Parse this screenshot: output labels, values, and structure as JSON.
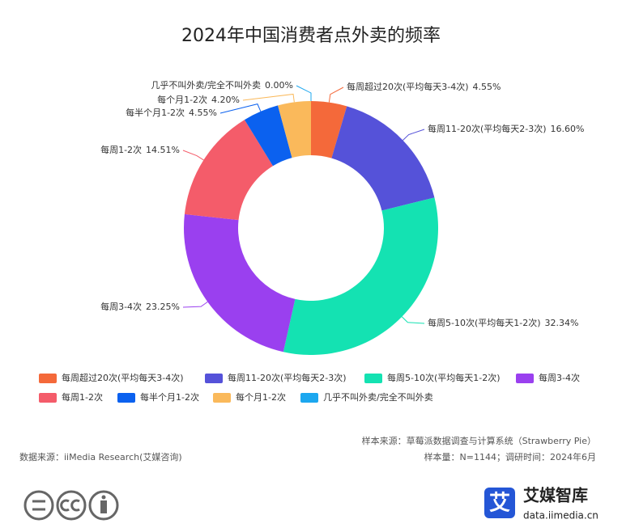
{
  "chart_data": {
    "type": "donut",
    "title": "2024年中国消费者点外卖的频率",
    "categories": [
      "每周超过20次(平均每天3-4次)",
      "每周11-20次(平均每天2-3次)",
      "每周5-10次(平均每天1-2次)",
      "每周3-4次",
      "每周1-2次",
      "每半个月1-2次",
      "每个月1-2次",
      "几乎不叫外卖/完全不叫外卖"
    ],
    "values": [
      4.55,
      16.6,
      32.34,
      23.25,
      14.51,
      4.55,
      4.2,
      0.0
    ],
    "value_labels": [
      "4.55%",
      "16.60%",
      "32.34%",
      "23.25%",
      "14.51%",
      "4.55%",
      "4.20%",
      "0.00%"
    ],
    "colors": [
      "#f4693a",
      "#5552d9",
      "#14e2b2",
      "#9a40ef",
      "#f45c6a",
      "#0b61ef",
      "#fab95b",
      "#1ca7ef"
    ],
    "legend": "bottom"
  },
  "footer": {
    "sample_source": "样本来源：草莓派数据调查与计算系统（Strawberry Pie）",
    "sample_size": "样本量：N=1144；调研时间：2024年6月",
    "data_source": "数据来源：iiMedia Research(艾媒咨询)"
  },
  "brand": {
    "icon": "艾",
    "name": "艾媒智库",
    "url": "data.iimedia.cn"
  }
}
